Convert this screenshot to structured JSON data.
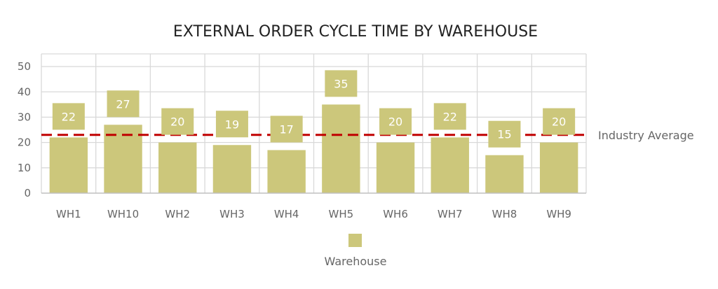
{
  "chart_data": {
    "type": "bar",
    "title": "EXTERNAL ORDER CYCLE TIME BY WAREHOUSE",
    "categories": [
      "WH1",
      "WH10",
      "WH2",
      "WH3",
      "WH4",
      "WH5",
      "WH6",
      "WH7",
      "WH8",
      "WH9"
    ],
    "series": [
      {
        "name": "Warehouse",
        "values": [
          22,
          27,
          20,
          19,
          17,
          35,
          20,
          22,
          15,
          20
        ]
      }
    ],
    "reference_line": {
      "label": "Industry Average",
      "value": 23,
      "color": "#c00000"
    },
    "ylim": [
      0,
      55
    ],
    "yticks": [
      0,
      10,
      20,
      30,
      40,
      50
    ],
    "grid": true,
    "legend": "bottom",
    "bar_color": "#ccc77b",
    "data_label_color": "#ffffff"
  }
}
